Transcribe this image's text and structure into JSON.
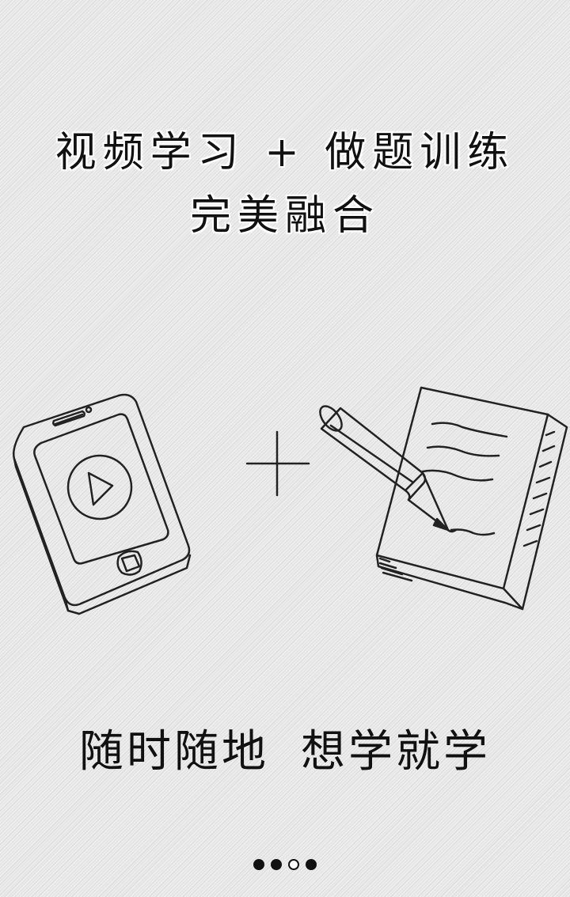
{
  "headline": {
    "line1": "视频学习 + 做题训练",
    "line2": "完美融合"
  },
  "illustration": {
    "left_icon": "phone-with-play-icon",
    "middle_icon": "plus-icon",
    "right_icon": "pencil-and-notepad-icon"
  },
  "tagline": {
    "part1": "随时随地",
    "part2": "想学就学"
  },
  "pager": {
    "count": 4,
    "active_index": 2
  }
}
